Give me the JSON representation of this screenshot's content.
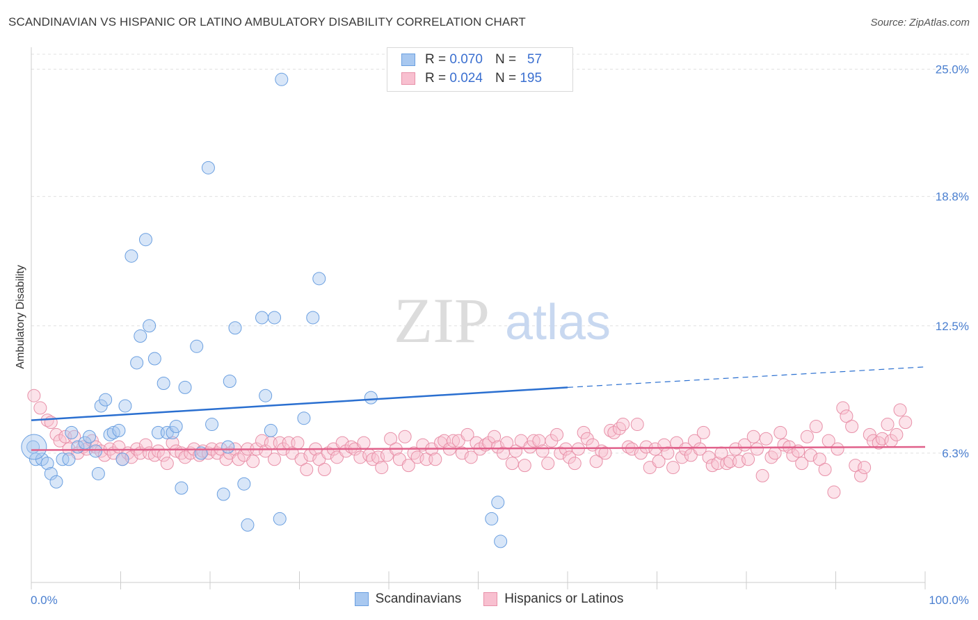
{
  "header": {
    "title": "SCANDINAVIAN VS HISPANIC OR LATINO AMBULATORY DISABILITY CORRELATION CHART",
    "source": "Source: ZipAtlas.com"
  },
  "watermark": {
    "zip": "ZIP",
    "atlas": "atlas"
  },
  "legend": {
    "rows": [
      {
        "r_label": "R =",
        "r_value": "0.070",
        "n_label": "N =",
        "n_value": "57",
        "color": "#a8c8f0",
        "border": "#6a9fe0"
      },
      {
        "r_label": "R =",
        "r_value": "0.024",
        "n_label": "N =",
        "n_value": "195",
        "color": "#f8c0d0",
        "border": "#e890a8"
      }
    ]
  },
  "bottom_legend": {
    "items": [
      {
        "label": "Scandinavians",
        "color": "#a8c8f0",
        "border": "#6a9fe0"
      },
      {
        "label": "Hispanics or Latinos",
        "color": "#f8c0d0",
        "border": "#e890a8"
      }
    ]
  },
  "chart_data": {
    "type": "scatter",
    "title": "SCANDINAVIAN VS HISPANIC OR LATINO AMBULATORY DISABILITY CORRELATION CHART",
    "xlabel": "",
    "ylabel": "Ambulatory Disability",
    "xlim": [
      0,
      100
    ],
    "ylim": [
      0,
      26
    ],
    "x_tick_labels": [
      "0.0%",
      "100.0%"
    ],
    "y_ticks": [
      6.3,
      12.5,
      18.8,
      25.0
    ],
    "y_tick_labels": [
      "6.3%",
      "12.5%",
      "18.8%",
      "25.0%"
    ],
    "grid": true,
    "colors": {
      "blue": "#6a9fe0",
      "blue_line": "#2a6fd0",
      "pink": "#e890a8",
      "pink_line": "#e0608a"
    },
    "series": [
      {
        "name": "Scandinavians",
        "R": 0.07,
        "N": 57,
        "trend": {
          "x0": 0,
          "y0": 7.9,
          "x1": 60,
          "y1": 9.5,
          "dash_to_x": 100,
          "dash_to_y": 10.5
        },
        "points": [
          [
            0.2,
            6.6
          ],
          [
            0.5,
            6.0
          ],
          [
            1.2,
            6.0
          ],
          [
            1.8,
            5.8
          ],
          [
            2.2,
            5.3
          ],
          [
            2.8,
            4.9
          ],
          [
            3.5,
            6.0
          ],
          [
            4.2,
            6.0
          ],
          [
            4.5,
            7.3
          ],
          [
            5.2,
            6.6
          ],
          [
            6.0,
            6.8
          ],
          [
            6.5,
            7.1
          ],
          [
            7.2,
            6.4
          ],
          [
            7.5,
            5.3
          ],
          [
            7.8,
            8.6
          ],
          [
            8.3,
            8.9
          ],
          [
            8.8,
            7.2
          ],
          [
            9.2,
            7.3
          ],
          [
            9.8,
            7.4
          ],
          [
            10.2,
            6.0
          ],
          [
            10.5,
            8.6
          ],
          [
            11.2,
            15.9
          ],
          [
            11.8,
            10.7
          ],
          [
            12.2,
            12.0
          ],
          [
            12.8,
            16.7
          ],
          [
            13.2,
            12.5
          ],
          [
            13.8,
            10.9
          ],
          [
            14.2,
            7.3
          ],
          [
            14.8,
            9.7
          ],
          [
            15.2,
            7.3
          ],
          [
            15.8,
            7.3
          ],
          [
            16.2,
            7.6
          ],
          [
            16.8,
            4.6
          ],
          [
            17.2,
            9.5
          ],
          [
            18.5,
            11.5
          ],
          [
            19.0,
            6.3
          ],
          [
            19.8,
            20.2
          ],
          [
            20.2,
            7.7
          ],
          [
            21.5,
            4.3
          ],
          [
            22.0,
            6.6
          ],
          [
            22.2,
            9.8
          ],
          [
            22.8,
            12.4
          ],
          [
            23.8,
            4.8
          ],
          [
            24.2,
            2.8
          ],
          [
            25.8,
            12.9
          ],
          [
            26.2,
            9.1
          ],
          [
            26.8,
            7.4
          ],
          [
            27.2,
            12.9
          ],
          [
            27.8,
            3.1
          ],
          [
            28.0,
            24.5
          ],
          [
            30.5,
            8.0
          ],
          [
            31.5,
            12.9
          ],
          [
            32.2,
            14.8
          ],
          [
            52.5,
            2.0
          ],
          [
            51.5,
            3.1
          ],
          [
            52.2,
            3.9
          ],
          [
            38.0,
            9.0
          ]
        ]
      },
      {
        "name": "Hispanics or Latinos",
        "R": 0.024,
        "N": 195,
        "trend": {
          "x0": 0,
          "y0": 6.45,
          "x1": 100,
          "y1": 6.6
        },
        "points": [
          [
            0.3,
            9.1
          ],
          [
            1.0,
            8.5
          ],
          [
            1.8,
            7.9
          ],
          [
            2.2,
            7.8
          ],
          [
            2.8,
            7.2
          ],
          [
            3.2,
            6.9
          ],
          [
            3.8,
            7.1
          ],
          [
            4.2,
            6.5
          ],
          [
            4.8,
            7.1
          ],
          [
            5.2,
            6.3
          ],
          [
            5.8,
            6.6
          ],
          [
            6.2,
            6.5
          ],
          [
            6.8,
            6.9
          ],
          [
            7.2,
            6.6
          ],
          [
            7.8,
            6.4
          ],
          [
            8.2,
            6.2
          ],
          [
            8.8,
            6.5
          ],
          [
            9.2,
            6.3
          ],
          [
            9.8,
            6.6
          ],
          [
            10.2,
            6.0
          ],
          [
            10.8,
            6.3
          ],
          [
            11.2,
            6.1
          ],
          [
            11.8,
            6.5
          ],
          [
            12.2,
            6.3
          ],
          [
            12.8,
            6.7
          ],
          [
            13.2,
            6.3
          ],
          [
            13.8,
            6.2
          ],
          [
            14.2,
            6.4
          ],
          [
            14.8,
            6.2
          ],
          [
            15.2,
            5.8
          ],
          [
            15.8,
            6.8
          ],
          [
            16.2,
            6.4
          ],
          [
            16.8,
            6.3
          ],
          [
            17.2,
            6.1
          ],
          [
            17.8,
            6.3
          ],
          [
            18.2,
            6.5
          ],
          [
            18.8,
            6.2
          ],
          [
            19.2,
            6.4
          ],
          [
            19.8,
            6.3
          ],
          [
            20.2,
            6.5
          ],
          [
            20.8,
            6.3
          ],
          [
            21.2,
            6.5
          ],
          [
            21.8,
            6.0
          ],
          [
            22.2,
            6.3
          ],
          [
            22.8,
            6.5
          ],
          [
            23.2,
            6.0
          ],
          [
            23.8,
            6.2
          ],
          [
            24.2,
            6.5
          ],
          [
            24.8,
            5.9
          ],
          [
            25.2,
            6.5
          ],
          [
            25.8,
            6.9
          ],
          [
            26.2,
            6.4
          ],
          [
            26.8,
            6.8
          ],
          [
            27.2,
            6.0
          ],
          [
            27.8,
            6.8
          ],
          [
            28.2,
            6.5
          ],
          [
            28.8,
            6.8
          ],
          [
            29.2,
            6.3
          ],
          [
            29.8,
            6.8
          ],
          [
            30.2,
            6.0
          ],
          [
            30.8,
            5.5
          ],
          [
            31.2,
            6.2
          ],
          [
            31.8,
            6.5
          ],
          [
            32.2,
            6.0
          ],
          [
            32.8,
            5.5
          ],
          [
            33.2,
            6.3
          ],
          [
            33.8,
            6.5
          ],
          [
            34.2,
            6.1
          ],
          [
            34.8,
            6.8
          ],
          [
            35.2,
            6.4
          ],
          [
            35.8,
            6.6
          ],
          [
            36.2,
            6.5
          ],
          [
            36.8,
            6.1
          ],
          [
            37.2,
            6.8
          ],
          [
            37.8,
            6.2
          ],
          [
            38.2,
            6.0
          ],
          [
            38.8,
            6.1
          ],
          [
            39.2,
            5.6
          ],
          [
            39.8,
            6.2
          ],
          [
            40.2,
            7.0
          ],
          [
            40.8,
            6.5
          ],
          [
            41.2,
            6.0
          ],
          [
            41.8,
            7.1
          ],
          [
            42.2,
            5.7
          ],
          [
            42.8,
            6.3
          ],
          [
            43.2,
            6.1
          ],
          [
            43.8,
            6.7
          ],
          [
            44.2,
            6.0
          ],
          [
            44.8,
            6.5
          ],
          [
            45.2,
            6.0
          ],
          [
            45.8,
            6.8
          ],
          [
            46.2,
            6.9
          ],
          [
            46.8,
            6.5
          ],
          [
            47.2,
            6.9
          ],
          [
            47.8,
            6.9
          ],
          [
            48.2,
            6.3
          ],
          [
            48.8,
            7.2
          ],
          [
            49.2,
            6.1
          ],
          [
            49.8,
            6.8
          ],
          [
            50.2,
            6.5
          ],
          [
            50.8,
            6.7
          ],
          [
            51.2,
            6.8
          ],
          [
            51.8,
            7.1
          ],
          [
            52.2,
            6.6
          ],
          [
            52.8,
            6.3
          ],
          [
            53.2,
            6.8
          ],
          [
            53.8,
            5.8
          ],
          [
            54.2,
            6.4
          ],
          [
            54.8,
            6.9
          ],
          [
            55.2,
            5.7
          ],
          [
            55.8,
            6.6
          ],
          [
            56.2,
            6.9
          ],
          [
            56.8,
            6.9
          ],
          [
            57.2,
            6.4
          ],
          [
            57.8,
            5.8
          ],
          [
            58.2,
            6.9
          ],
          [
            58.8,
            7.2
          ],
          [
            59.2,
            6.3
          ],
          [
            59.8,
            6.5
          ],
          [
            60.2,
            6.1
          ],
          [
            60.8,
            5.8
          ],
          [
            61.2,
            6.5
          ],
          [
            61.8,
            7.3
          ],
          [
            62.2,
            7.0
          ],
          [
            62.8,
            6.7
          ],
          [
            63.2,
            5.9
          ],
          [
            63.8,
            6.4
          ],
          [
            64.2,
            6.3
          ],
          [
            64.8,
            7.4
          ],
          [
            65.2,
            7.3
          ],
          [
            65.8,
            7.5
          ],
          [
            66.2,
            7.7
          ],
          [
            66.8,
            6.6
          ],
          [
            67.2,
            6.5
          ],
          [
            67.8,
            7.7
          ],
          [
            68.2,
            6.3
          ],
          [
            68.8,
            6.6
          ],
          [
            69.2,
            5.6
          ],
          [
            69.8,
            6.5
          ],
          [
            70.2,
            5.9
          ],
          [
            70.8,
            6.7
          ],
          [
            71.2,
            6.3
          ],
          [
            71.8,
            5.6
          ],
          [
            72.2,
            6.8
          ],
          [
            72.8,
            6.1
          ],
          [
            73.2,
            6.5
          ],
          [
            73.8,
            6.2
          ],
          [
            74.2,
            6.9
          ],
          [
            74.8,
            6.5
          ],
          [
            75.2,
            7.3
          ],
          [
            75.8,
            6.1
          ],
          [
            76.2,
            5.7
          ],
          [
            76.8,
            5.8
          ],
          [
            77.2,
            6.3
          ],
          [
            77.8,
            5.8
          ],
          [
            78.2,
            5.9
          ],
          [
            78.8,
            6.5
          ],
          [
            79.2,
            5.9
          ],
          [
            79.8,
            6.7
          ],
          [
            80.2,
            6.0
          ],
          [
            80.8,
            7.1
          ],
          [
            81.2,
            6.5
          ],
          [
            81.8,
            5.2
          ],
          [
            82.2,
            7.0
          ],
          [
            82.8,
            6.1
          ],
          [
            83.2,
            6.3
          ],
          [
            83.8,
            7.3
          ],
          [
            84.2,
            6.7
          ],
          [
            84.8,
            6.6
          ],
          [
            85.2,
            6.2
          ],
          [
            85.8,
            6.4
          ],
          [
            86.2,
            5.8
          ],
          [
            86.8,
            7.1
          ],
          [
            87.2,
            6.2
          ],
          [
            87.8,
            7.6
          ],
          [
            88.2,
            6.0
          ],
          [
            88.8,
            5.5
          ],
          [
            89.2,
            6.9
          ],
          [
            89.8,
            4.4
          ],
          [
            90.2,
            6.5
          ],
          [
            90.8,
            8.5
          ],
          [
            91.2,
            8.1
          ],
          [
            91.8,
            7.6
          ],
          [
            92.2,
            5.7
          ],
          [
            92.8,
            5.2
          ],
          [
            93.2,
            5.6
          ],
          [
            93.8,
            7.2
          ],
          [
            94.2,
            6.9
          ],
          [
            94.8,
            6.8
          ],
          [
            95.2,
            7.0
          ],
          [
            95.8,
            7.7
          ],
          [
            96.2,
            6.9
          ],
          [
            96.8,
            7.2
          ],
          [
            97.2,
            8.4
          ],
          [
            97.8,
            7.8
          ]
        ]
      }
    ]
  }
}
